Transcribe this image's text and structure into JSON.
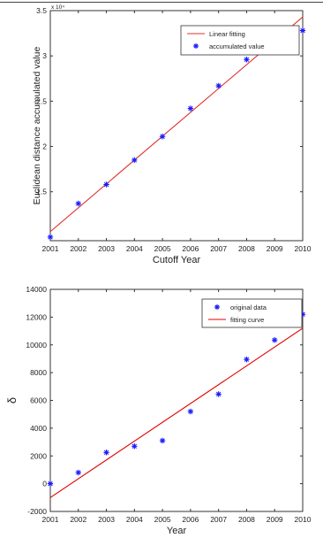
{
  "chart_data": [
    {
      "type": "scatter",
      "title": "",
      "xlabel": "Cutoff Year",
      "ylabel": "Euclidean distance accumulated value",
      "axis_multiplier": "x 10⁴",
      "xlim": [
        2001,
        2010
      ],
      "ylim": [
        9600,
        35000
      ],
      "xticks": [
        2001,
        2002,
        2003,
        2004,
        2005,
        2006,
        2007,
        2008,
        2009,
        2010
      ],
      "xtick_labels": [
        "2001",
        "2002",
        "2003",
        "2004",
        "2005",
        "2006",
        "2007",
        "2008",
        "2009",
        "2010"
      ],
      "yticks": [
        15000,
        20000,
        25000,
        30000,
        35000
      ],
      "ytick_labels": [
        "1.5",
        "2",
        "2.5",
        "3",
        "3.5"
      ],
      "grid": false,
      "legend_position": "top-right",
      "colors": {
        "data": "#1a1aff",
        "fit": "#e03030"
      },
      "series": [
        {
          "name": "Linear fitting",
          "kind": "line",
          "x": [
            2001,
            2010
          ],
          "y": [
            10600,
            34300
          ]
        },
        {
          "name": "accumulated value",
          "kind": "scatter",
          "marker": "*",
          "x": [
            2001,
            2002,
            2003,
            2004,
            2005,
            2006,
            2007,
            2008,
            2009,
            2010
          ],
          "y": [
            10000,
            13700,
            15800,
            18500,
            21100,
            24200,
            26700,
            29600,
            31700,
            32800
          ]
        }
      ]
    },
    {
      "type": "scatter",
      "title": "",
      "xlabel": "Year",
      "ylabel": "δ",
      "xlim": [
        2001,
        2010
      ],
      "ylim": [
        -2000,
        14000
      ],
      "xticks": [
        2001,
        2002,
        2003,
        2004,
        2005,
        2006,
        2007,
        2008,
        2009,
        2010
      ],
      "xtick_labels": [
        "2001",
        "2002",
        "2003",
        "2004",
        "2005",
        "2006",
        "2007",
        "2008",
        "2009",
        "2010"
      ],
      "yticks": [
        -2000,
        0,
        2000,
        4000,
        6000,
        8000,
        10000,
        12000,
        14000
      ],
      "ytick_labels": [
        "-2000",
        "0",
        "2000",
        "4000",
        "6000",
        "8000",
        "10000",
        "12000",
        "14000"
      ],
      "grid": false,
      "legend_position": "top-right",
      "colors": {
        "data": "#1a1aff",
        "fit": "#e00000"
      },
      "series": [
        {
          "name": "original data",
          "kind": "scatter",
          "marker": "*",
          "x": [
            2001,
            2002,
            2003,
            2004,
            2005,
            2006,
            2007,
            2008,
            2009,
            2010
          ],
          "y": [
            0,
            800,
            2250,
            2700,
            3100,
            5200,
            6450,
            8950,
            10350,
            12200
          ]
        },
        {
          "name": "fitting curve",
          "kind": "line",
          "x": [
            2001,
            2010
          ],
          "y": [
            -1000,
            11200
          ]
        }
      ]
    }
  ]
}
